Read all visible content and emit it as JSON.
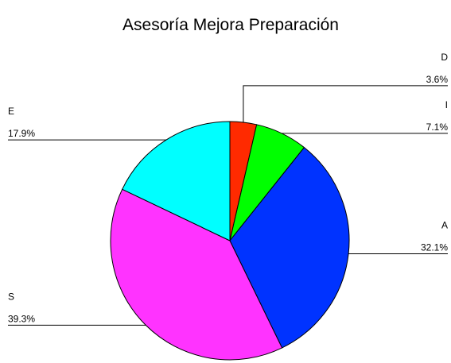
{
  "chart_data": {
    "type": "pie",
    "title": "Asesoría Mejora Preparación",
    "categories": [
      "D",
      "I",
      "A",
      "S",
      "E"
    ],
    "values": [
      3.6,
      7.1,
      32.1,
      39.3,
      17.9
    ],
    "value_labels": [
      "3.6%",
      "7.1%",
      "32.1%",
      "39.3%",
      "17.9%"
    ],
    "colors": [
      "#ff2a00",
      "#00ff00",
      "#0033ff",
      "#ff33ff",
      "#00ffff"
    ]
  }
}
